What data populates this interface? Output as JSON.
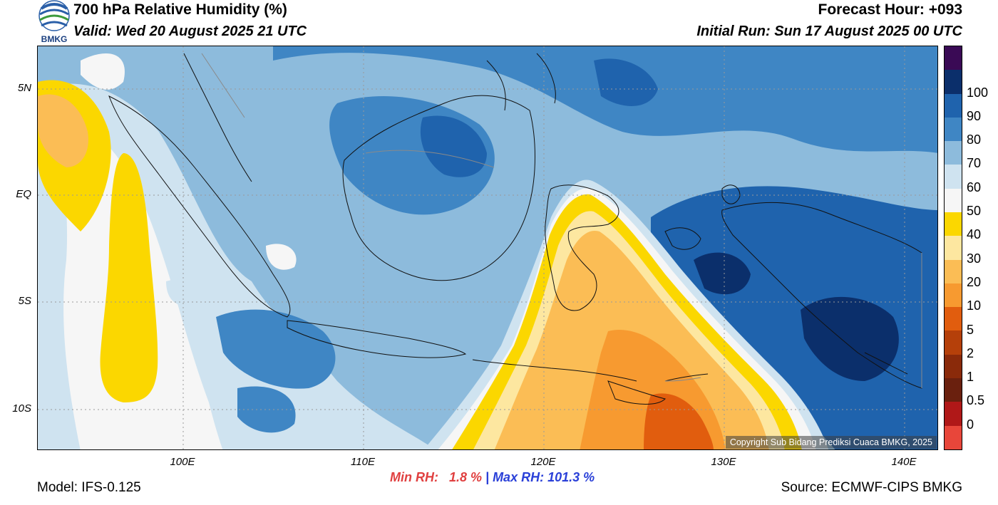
{
  "header": {
    "title": "700 hPa Relative Humidity (%)",
    "valid": "Valid: Wed 20 August 2025 21 UTC",
    "forecast_hour": "Forecast Hour: +093",
    "initial_run": "Initial Run: Sun 17 August 2025 00 UTC",
    "logo_text": "BMKG"
  },
  "map": {
    "lat_labels": [
      "5N",
      "EQ",
      "5S",
      "10S"
    ],
    "lon_labels": [
      "100E",
      "110E",
      "120E",
      "130E",
      "140E"
    ],
    "copyright": "Copyright Sub Bidang Prediksi Cuaca BMKG, 2025"
  },
  "colorbar": {
    "labels": [
      "100",
      "90",
      "80",
      "70",
      "60",
      "50",
      "40",
      "30",
      "20",
      "10",
      "5",
      "2",
      "1",
      "0.5",
      "0"
    ],
    "colors": [
      "#3a0a55",
      "#0b2f6b",
      "#1f63ad",
      "#3f86c4",
      "#8dbbdc",
      "#cfe3f0",
      "#f6f6f6",
      "#fbd700",
      "#fde7a0",
      "#fbbd55",
      "#f79a30",
      "#e15d0e",
      "#b5400a",
      "#8a2a0a",
      "#6a200e",
      "#b01818",
      "#e8463a"
    ]
  },
  "footer": {
    "min_rh": "Min RH:   1.8 %",
    "separator": " | ",
    "max_rh": "Max RH: 101.3 %",
    "model": "Model: IFS-0.125",
    "source": "Source: ECMWF-CIPS BMKG"
  }
}
